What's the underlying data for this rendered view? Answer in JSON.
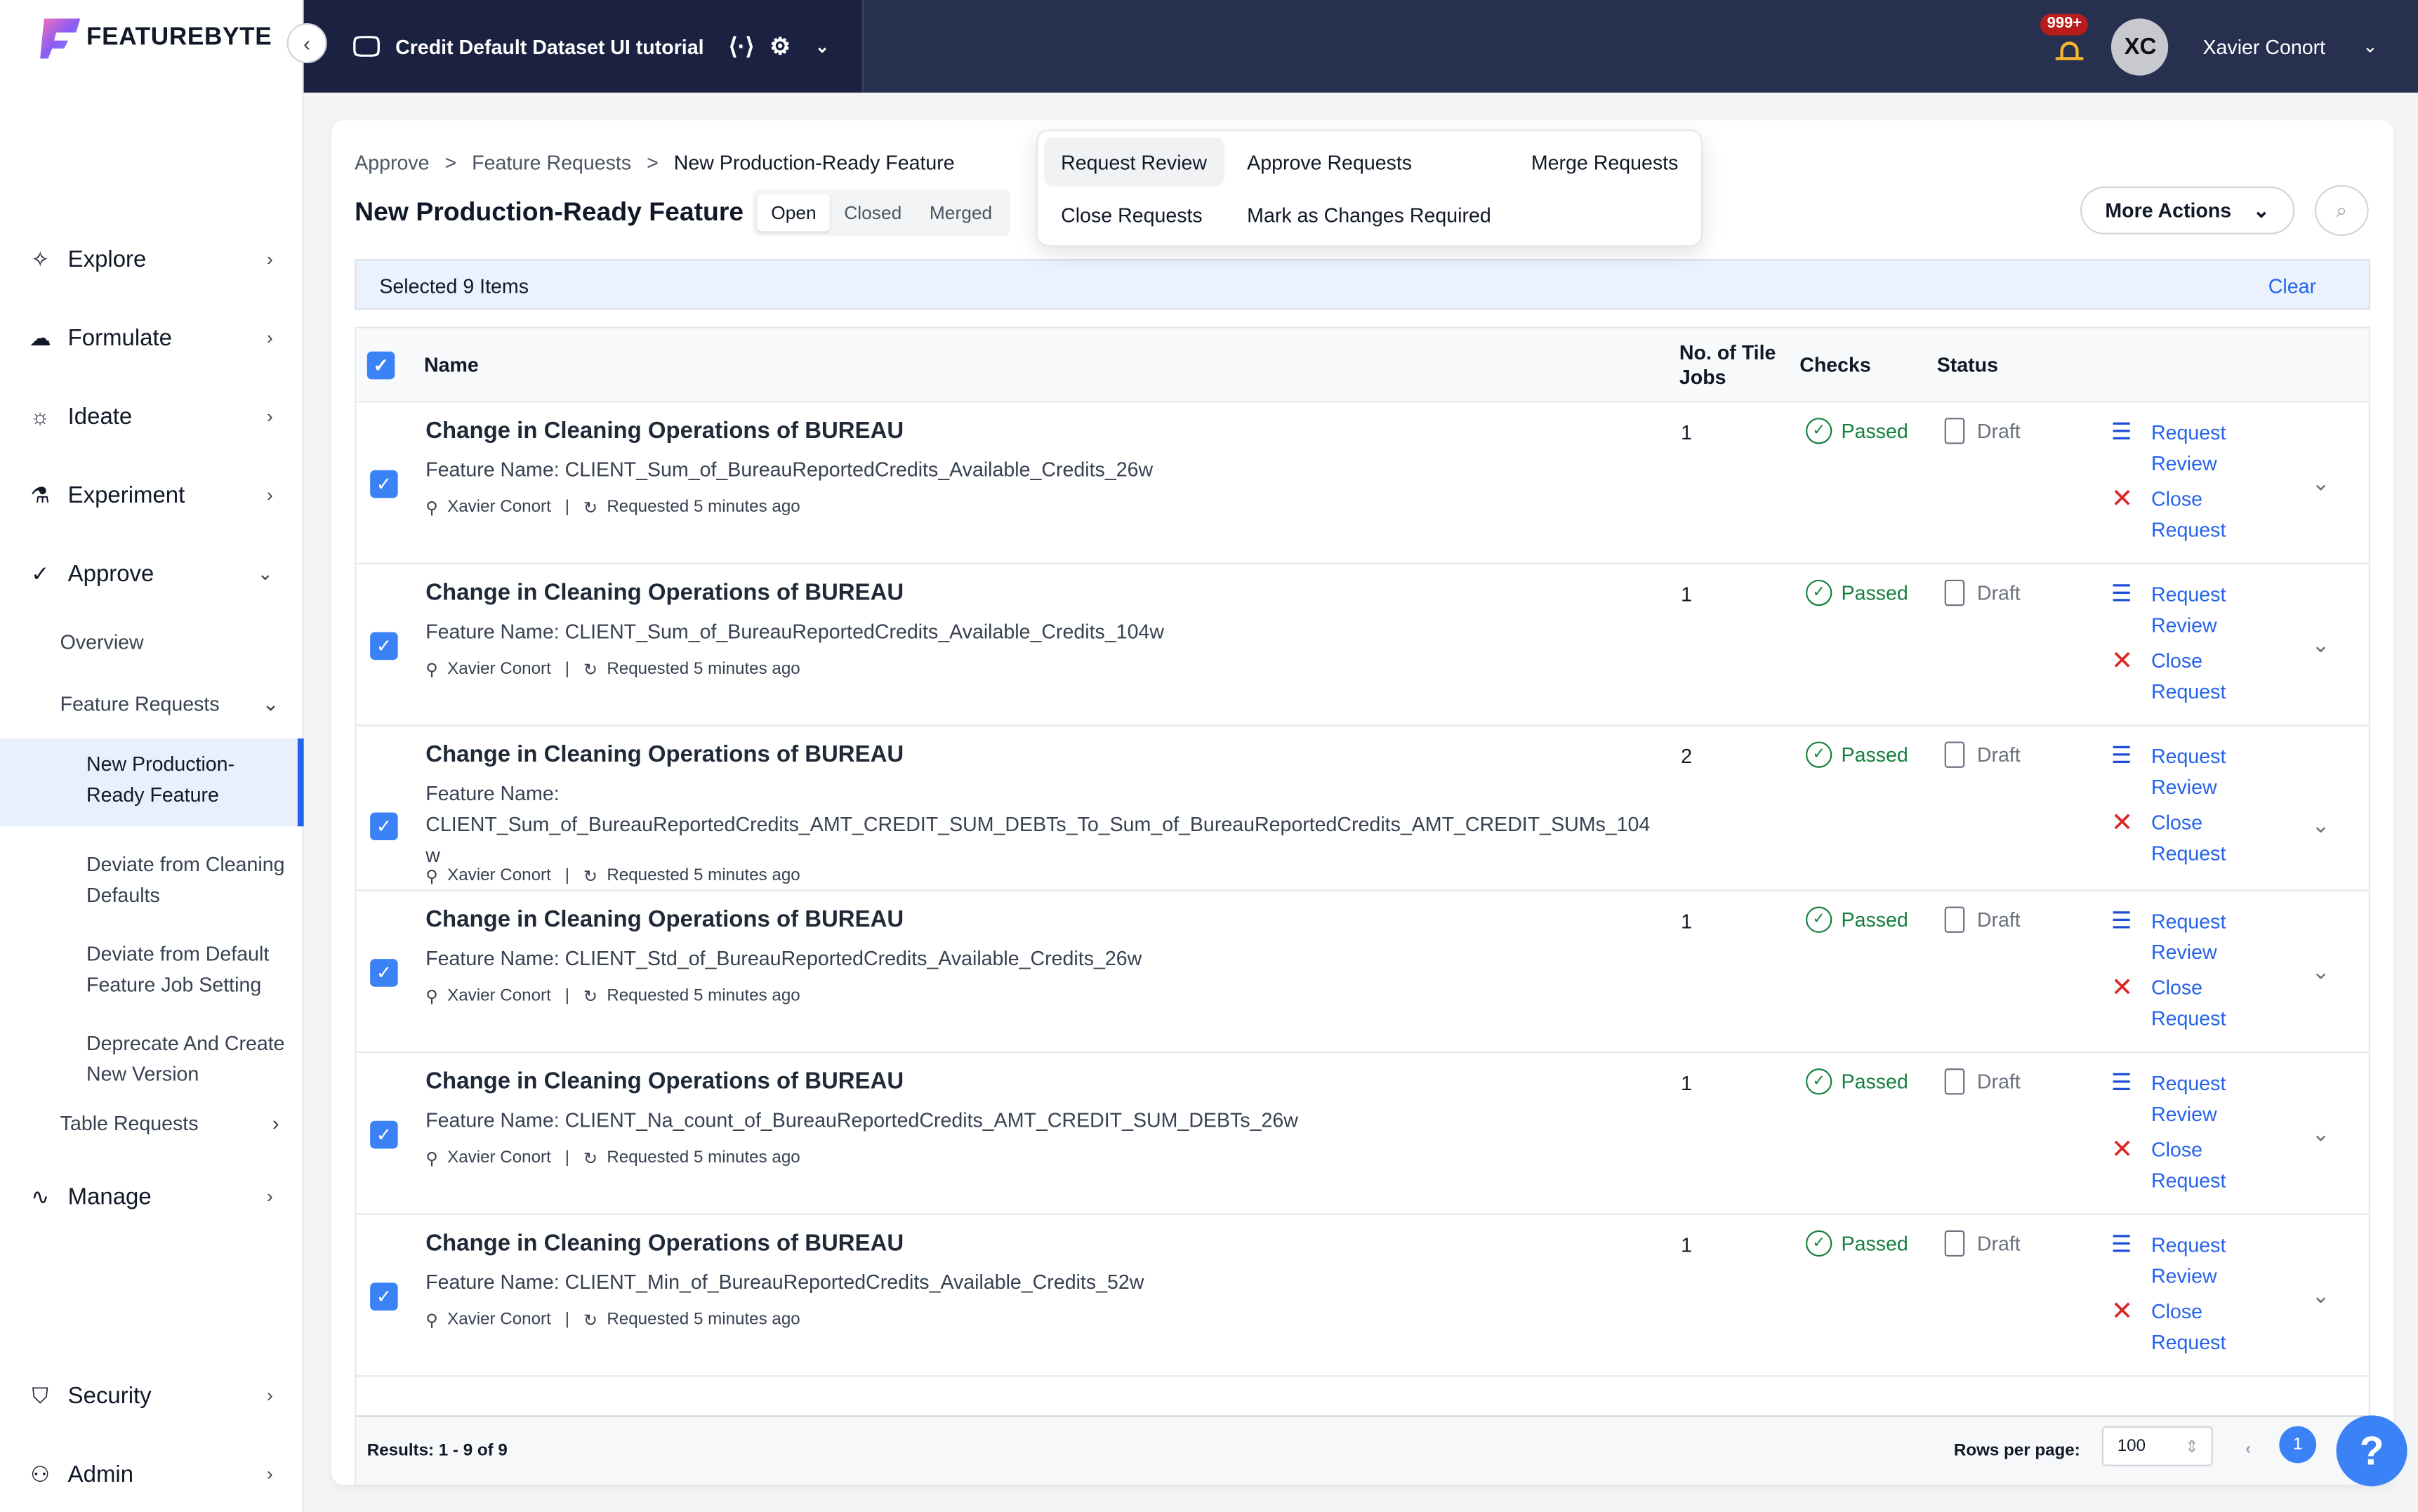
{
  "app": {
    "brand": "FEATUREBYTE",
    "project": "Credit Default Dataset UI tutorial",
    "notifications": "999+",
    "user_initials": "XC",
    "user_name": "Xavier Conort"
  },
  "colors": {
    "accent": "#3b82f6",
    "topbar": "#1e2340",
    "passed": "#15803d",
    "close": "#dc2626"
  },
  "sidebar": {
    "items": [
      {
        "label": "Explore",
        "icon": "telescope-icon"
      },
      {
        "label": "Formulate",
        "icon": "brain-icon"
      },
      {
        "label": "Ideate",
        "icon": "bulb-icon"
      },
      {
        "label": "Experiment",
        "icon": "flask-icon"
      },
      {
        "label": "Approve",
        "icon": "check-icon"
      },
      {
        "label": "Manage",
        "icon": "pulse-icon"
      },
      {
        "label": "Security",
        "icon": "shield-icon"
      },
      {
        "label": "Admin",
        "icon": "user-gear-icon"
      }
    ],
    "approve_sub": [
      "Overview",
      "Feature Requests",
      "Table Requests"
    ],
    "feature_request_sub": [
      "New Production-Ready Feature",
      "Deviate from Cleaning Defaults",
      "Deviate from Default Feature Job Setting",
      "Deprecate And Create New Version"
    ]
  },
  "breadcrumb": [
    "Approve",
    "Feature Requests",
    "New Production-Ready Feature"
  ],
  "page": {
    "title": "New Production-Ready Feature",
    "tabs": [
      "Open",
      "Closed",
      "Merged"
    ],
    "more_actions": "More Actions",
    "selected": "Selected 9 Items",
    "clear": "Clear"
  },
  "menu": [
    "Request Review",
    "Approve Requests",
    "Merge Requests",
    "Close Requests",
    "Mark as Changes Required"
  ],
  "table": {
    "headers": {
      "name": "Name",
      "jobs": "No. of Tile Jobs",
      "checks": "Checks",
      "status": "Status"
    },
    "rows": [
      {
        "title": "Change in Cleaning Operations of BUREAU",
        "feature": "Feature Name: CLIENT_Sum_of_BureauReportedCredits_Available_Credits_26w",
        "user": "Xavier Conort",
        "requested": "Requested 5 minutes ago",
        "jobs": "1",
        "checks": "Passed",
        "status": "Draft",
        "a1": "Request Review",
        "a2": "Close Request"
      },
      {
        "title": "Change in Cleaning Operations of BUREAU",
        "feature": "Feature Name: CLIENT_Sum_of_BureauReportedCredits_Available_Credits_104w",
        "user": "Xavier Conort",
        "requested": "Requested 5 minutes ago",
        "jobs": "1",
        "checks": "Passed",
        "status": "Draft",
        "a1": "Request Review",
        "a2": "Close Request"
      },
      {
        "title": "Change in Cleaning Operations of BUREAU",
        "feature": "Feature Name: CLIENT_Sum_of_BureauReportedCredits_AMT_CREDIT_SUM_DEBTs_To_Sum_of_BureauReportedCredits_AMT_CREDIT_SUMs_104w",
        "user": "Xavier Conort",
        "requested": "Requested 5 minutes ago",
        "jobs": "2",
        "checks": "Passed",
        "status": "Draft",
        "a1": "Request Review",
        "a2": "Close Request"
      },
      {
        "title": "Change in Cleaning Operations of BUREAU",
        "feature": "Feature Name: CLIENT_Std_of_BureauReportedCredits_Available_Credits_26w",
        "user": "Xavier Conort",
        "requested": "Requested 5 minutes ago",
        "jobs": "1",
        "checks": "Passed",
        "status": "Draft",
        "a1": "Request Review",
        "a2": "Close Request"
      },
      {
        "title": "Change in Cleaning Operations of BUREAU",
        "feature": "Feature Name: CLIENT_Na_count_of_BureauReportedCredits_AMT_CREDIT_SUM_DEBTs_26w",
        "user": "Xavier Conort",
        "requested": "Requested 5 minutes ago",
        "jobs": "1",
        "checks": "Passed",
        "status": "Draft",
        "a1": "Request Review",
        "a2": "Close Request"
      },
      {
        "title": "Change in Cleaning Operations of BUREAU",
        "feature": "Feature Name: CLIENT_Min_of_BureauReportedCredits_Available_Credits_52w",
        "user": "Xavier Conort",
        "requested": "Requested 5 minutes ago",
        "jobs": "1",
        "checks": "Passed",
        "status": "Draft",
        "a1": "Request Review",
        "a2": "Close Request"
      }
    ],
    "results": "Results: 1 - 9 of 9",
    "rows_per_page_label": "Rows per page:",
    "rows_per_page": "100",
    "page": "1"
  }
}
